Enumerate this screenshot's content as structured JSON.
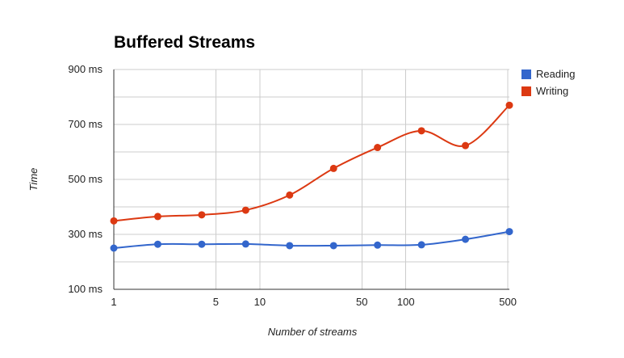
{
  "chart_data": {
    "type": "line",
    "title": "Buffered Streams",
    "xlabel": "Number of streams",
    "ylabel": "Time",
    "x_scale": "log",
    "xlim": [
      1,
      512
    ],
    "ylim": [
      100,
      900
    ],
    "x_ticks": [
      {
        "value": 1,
        "label": "1"
      },
      {
        "value": 5,
        "label": "5"
      },
      {
        "value": 10,
        "label": "10"
      },
      {
        "value": 50,
        "label": "50"
      },
      {
        "value": 100,
        "label": "100"
      },
      {
        "value": 500,
        "label": "500"
      }
    ],
    "x_gridlines": [
      1,
      5,
      10,
      50,
      100,
      500
    ],
    "y_ticks": [
      {
        "value": 100,
        "label": "100 ms"
      },
      {
        "value": 300,
        "label": "300 ms"
      },
      {
        "value": 500,
        "label": "500 ms"
      },
      {
        "value": 700,
        "label": "700 ms"
      },
      {
        "value": 900,
        "label": "900 ms"
      }
    ],
    "y_gridlines": [
      100,
      200,
      300,
      400,
      500,
      600,
      700,
      800,
      900
    ],
    "grid": true,
    "legend_position": "right",
    "x": [
      1,
      2,
      4,
      8,
      16,
      32,
      64,
      128,
      256,
      512
    ],
    "series": [
      {
        "name": "Reading",
        "color": "#3366cc",
        "values": [
          250,
          264,
          264,
          265,
          259,
          259,
          261,
          262,
          282,
          310
        ]
      },
      {
        "name": "Writing",
        "color": "#dc3912",
        "values": [
          349,
          365,
          371,
          388,
          443,
          540,
          616,
          677,
          623,
          770
        ]
      }
    ]
  }
}
